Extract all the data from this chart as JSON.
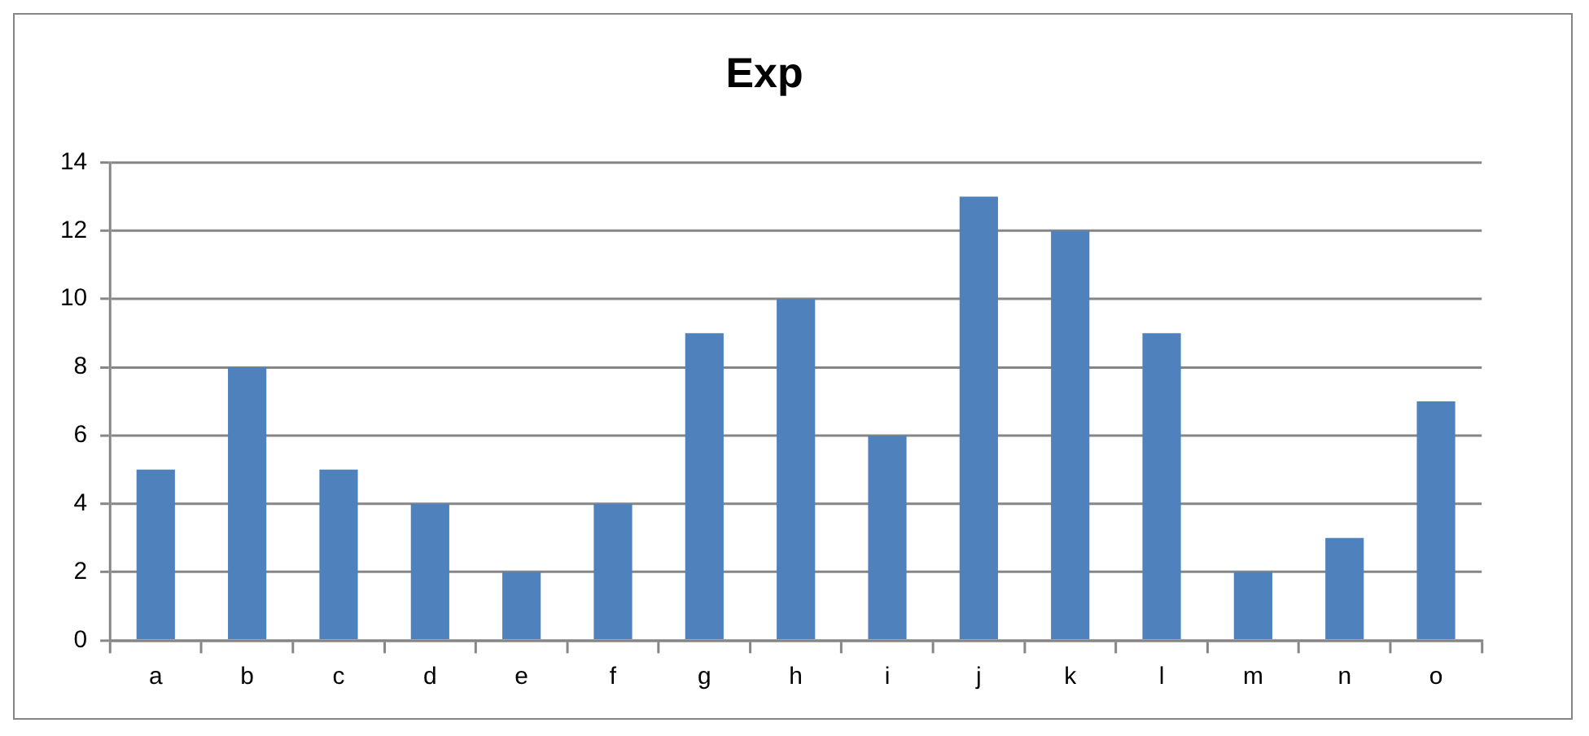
{
  "chart_data": {
    "type": "bar",
    "title": "Exp",
    "categories": [
      "a",
      "b",
      "c",
      "d",
      "e",
      "f",
      "g",
      "h",
      "i",
      "j",
      "k",
      "l",
      "m",
      "n",
      "o"
    ],
    "values": [
      5,
      8,
      5,
      4,
      2,
      4,
      9,
      10,
      6,
      13,
      12,
      9,
      2,
      3,
      7
    ],
    "color": "#4f81bd",
    "ylim": [
      0,
      14
    ],
    "yticks": [
      0,
      2,
      4,
      6,
      8,
      10,
      12,
      14
    ],
    "grid": "y",
    "legend": false
  }
}
